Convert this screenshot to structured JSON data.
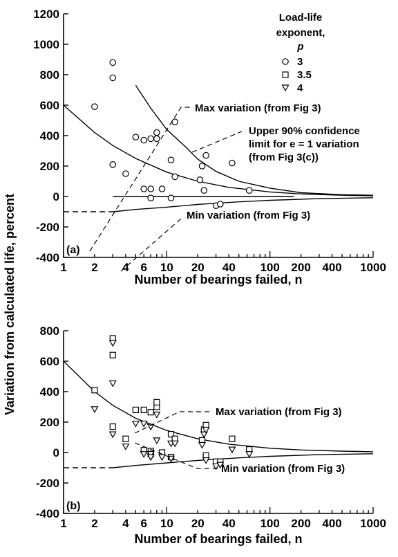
{
  "ylabel": "Variation from calculated life, percent",
  "chart_data": [
    {
      "type": "scatter",
      "panel_label": "(a)",
      "xlabel": "Number of bearings failed, n",
      "xscale": "log",
      "xlim": [
        1,
        1000
      ],
      "ylim": [
        -400,
        1200
      ],
      "x_ticks": [
        1,
        2,
        4,
        6,
        10,
        20,
        40,
        100,
        200,
        400,
        1000
      ],
      "x_tick_labels": [
        "1",
        "2",
        "4",
        "6",
        "10",
        "20",
        "40",
        "100",
        "200",
        "400",
        "1000"
      ],
      "y_ticks": [
        -400,
        -200,
        0,
        200,
        400,
        600,
        800,
        1000,
        1200
      ],
      "y_tick_labels": [
        "-400",
        "-200",
        "0",
        "200",
        "400",
        "600",
        "800",
        "1000",
        "1200"
      ],
      "legend": {
        "title": [
          "Load-life",
          "exponent,",
          "p"
        ],
        "entries": [
          {
            "label": "3",
            "marker": "circle"
          },
          {
            "label": "3.5",
            "marker": "square"
          },
          {
            "label": "4",
            "marker": "triangle-down"
          }
        ],
        "position": "top-right"
      },
      "series": [
        {
          "name": "3",
          "marker": "circle",
          "points": [
            [
              2,
              590
            ],
            [
              3,
              880
            ],
            [
              3,
              780
            ],
            [
              3,
              210
            ],
            [
              4,
              150
            ],
            [
              5,
              390
            ],
            [
              6,
              370
            ],
            [
              6,
              50
            ],
            [
              7,
              380
            ],
            [
              7,
              50
            ],
            [
              7,
              -10
            ],
            [
              8,
              380
            ],
            [
              8,
              420
            ],
            [
              9,
              50
            ],
            [
              11,
              240
            ],
            [
              11,
              -10
            ],
            [
              12,
              130
            ],
            [
              12,
              490
            ],
            [
              21,
              110
            ],
            [
              22,
              200
            ],
            [
              23,
              40
            ],
            [
              24,
              270
            ],
            [
              30,
              -60
            ],
            [
              33,
              -50
            ],
            [
              43,
              220
            ],
            [
              63,
              40
            ]
          ]
        }
      ],
      "curves": [
        {
          "name": "max-variation",
          "points": [
            [
              1,
              600
            ],
            [
              2,
              420
            ],
            [
              3,
              335
            ],
            [
              5,
              250
            ],
            [
              10,
              160
            ],
            [
              20,
              100
            ],
            [
              40,
              60
            ],
            [
              100,
              30
            ],
            [
              200,
              17
            ],
            [
              500,
              8
            ],
            [
              1000,
              5
            ]
          ]
        },
        {
          "name": "upper-90-confidence",
          "points": [
            [
              5,
              730
            ],
            [
              7,
              580
            ],
            [
              10,
              440
            ],
            [
              15,
              330
            ],
            [
              20,
              245
            ],
            [
              30,
              165
            ],
            [
              50,
              100
            ],
            [
              100,
              55
            ],
            [
              200,
              25
            ],
            [
              500,
              12
            ],
            [
              1000,
              8
            ]
          ]
        },
        {
          "name": "zero-line",
          "points": [
            [
              3,
              0
            ],
            [
              170,
              0
            ]
          ]
        },
        {
          "name": "min-variation",
          "points": [
            [
              1,
              -100
            ],
            [
              3,
              -100
            ],
            [
              5,
              -85
            ],
            [
              10,
              -70
            ],
            [
              20,
              -52
            ],
            [
              50,
              -35
            ],
            [
              100,
              -25
            ],
            [
              300,
              -14
            ],
            [
              1000,
              -8
            ]
          ]
        }
      ],
      "annotations": [
        {
          "key": "max",
          "lines": [
            "Max variation (from Fig 3)"
          ]
        },
        {
          "key": "upper",
          "lines": [
            "Upper 90% confidence",
            "limit for e = 1 variation",
            "(from Fig 3(c))"
          ]
        },
        {
          "key": "min",
          "lines": [
            "Min variation (from Fig 3)"
          ]
        }
      ]
    },
    {
      "type": "scatter",
      "panel_label": "(b)",
      "xlabel": "Number of bearings failed, n",
      "xscale": "log",
      "xlim": [
        1,
        1000
      ],
      "ylim": [
        -400,
        800
      ],
      "x_ticks": [
        1,
        2,
        4,
        6,
        10,
        20,
        40,
        100,
        200,
        400,
        1000
      ],
      "x_tick_labels": [
        "1",
        "2",
        "4",
        "6",
        "10",
        "20",
        "40",
        "100",
        "200",
        "400",
        "1000"
      ],
      "y_ticks": [
        -400,
        -200,
        0,
        200,
        400,
        600,
        800
      ],
      "y_tick_labels": [
        "-400",
        "-200",
        "0",
        "200",
        "400",
        "600",
        "800"
      ],
      "series": [
        {
          "name": "3.5",
          "marker": "square",
          "points": [
            [
              2,
              410
            ],
            [
              3,
              750
            ],
            [
              3,
              640
            ],
            [
              3,
              170
            ],
            [
              4,
              90
            ],
            [
              5,
              280
            ],
            [
              6,
              280
            ],
            [
              6,
              15
            ],
            [
              7,
              265
            ],
            [
              7,
              10
            ],
            [
              7,
              -10
            ],
            [
              8,
              300
            ],
            [
              8,
              330
            ],
            [
              9,
              0
            ],
            [
              11,
              120
            ],
            [
              11,
              -30
            ],
            [
              12,
              90
            ],
            [
              22,
              80
            ],
            [
              23,
              150
            ],
            [
              24,
              180
            ],
            [
              24,
              -20
            ],
            [
              30,
              -60
            ],
            [
              33,
              -60
            ],
            [
              43,
              90
            ],
            [
              63,
              20
            ]
          ]
        },
        {
          "name": "4",
          "marker": "triangle-down",
          "points": [
            [
              2,
              285
            ],
            [
              3,
              720
            ],
            [
              3,
              455
            ],
            [
              3,
              120
            ],
            [
              4,
              40
            ],
            [
              5,
              190
            ],
            [
              6,
              190
            ],
            [
              6,
              -10
            ],
            [
              7,
              170
            ],
            [
              7,
              -10
            ],
            [
              7,
              -30
            ],
            [
              8,
              80
            ],
            [
              8,
              250
            ],
            [
              9,
              -30
            ],
            [
              11,
              60
            ],
            [
              11,
              -40
            ],
            [
              12,
              60
            ],
            [
              22,
              50
            ],
            [
              23,
              120
            ],
            [
              24,
              150
            ],
            [
              24,
              -50
            ],
            [
              30,
              -90
            ],
            [
              33,
              -80
            ],
            [
              43,
              20
            ],
            [
              63,
              -10
            ]
          ]
        }
      ],
      "curves": [
        {
          "name": "max-variation",
          "points": [
            [
              1,
              600
            ],
            [
              2,
              400
            ],
            [
              3,
              310
            ],
            [
              5,
              225
            ],
            [
              10,
              145
            ],
            [
              20,
              90
            ],
            [
              40,
              55
            ],
            [
              100,
              28
            ],
            [
              200,
              17
            ],
            [
              500,
              9
            ],
            [
              1000,
              5
            ]
          ]
        },
        {
          "name": "min-variation",
          "points": [
            [
              1,
              -100
            ],
            [
              3,
              -100
            ],
            [
              5,
              -85
            ],
            [
              10,
              -68
            ],
            [
              20,
              -52
            ],
            [
              50,
              -35
            ],
            [
              100,
              -25
            ],
            [
              300,
              -14
            ],
            [
              1000,
              -8
            ]
          ]
        }
      ],
      "annotations": [
        {
          "key": "max",
          "lines": [
            "Max variation (from Fig 3)"
          ]
        },
        {
          "key": "min",
          "lines": [
            "Min variation (from Fig 3)"
          ]
        }
      ]
    }
  ]
}
